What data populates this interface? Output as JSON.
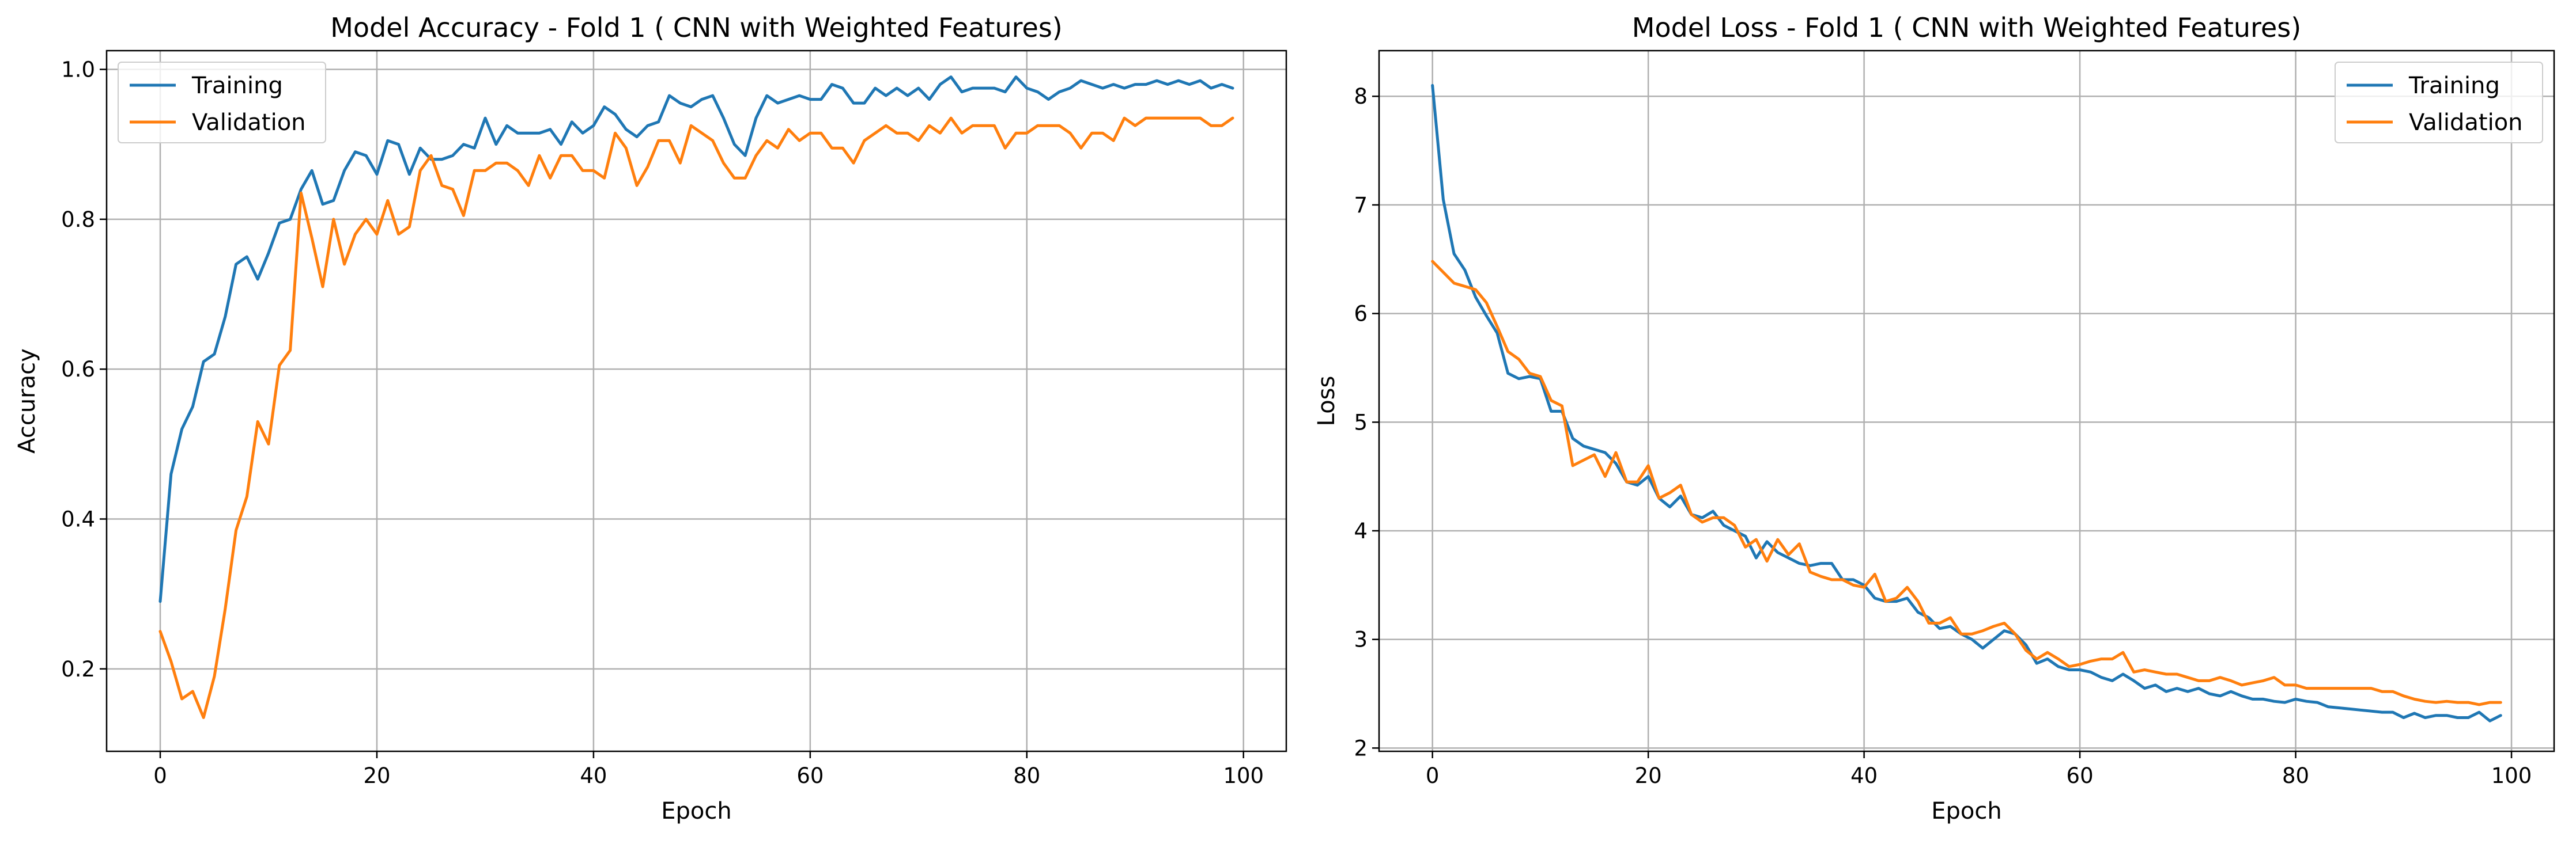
{
  "chart_data": [
    {
      "type": "line",
      "title": "Model Accuracy - Fold 1 ( CNN with Weighted Features)",
      "xlabel": "Epoch",
      "ylabel": "Accuracy",
      "xlim": [
        -4.95,
        103.95
      ],
      "ylim": [
        0.09,
        1.025
      ],
      "xticks": [
        0,
        20,
        40,
        60,
        80,
        100
      ],
      "xtick_labels": [
        "0",
        "20",
        "40",
        "60",
        "80",
        "100"
      ],
      "yticks": [
        0.2,
        0.4,
        0.6,
        0.8,
        1.0
      ],
      "ytick_labels": [
        "0.2",
        "0.4",
        "0.6",
        "0.8",
        "1.0"
      ],
      "grid": true,
      "legend_position": "top-left",
      "series": [
        {
          "name": "Training",
          "color": "#1f77b4",
          "values": [
            0.29,
            0.46,
            0.52,
            0.55,
            0.61,
            0.62,
            0.67,
            0.74,
            0.75,
            0.72,
            0.755,
            0.795,
            0.8,
            0.84,
            0.865,
            0.82,
            0.825,
            0.865,
            0.89,
            0.885,
            0.86,
            0.905,
            0.9,
            0.86,
            0.895,
            0.88,
            0.88,
            0.885,
            0.9,
            0.895,
            0.935,
            0.9,
            0.925,
            0.915,
            0.915,
            0.915,
            0.92,
            0.9,
            0.93,
            0.915,
            0.925,
            0.95,
            0.94,
            0.92,
            0.91,
            0.925,
            0.93,
            0.965,
            0.955,
            0.95,
            0.96,
            0.965,
            0.935,
            0.9,
            0.885,
            0.935,
            0.965,
            0.955,
            0.96,
            0.965,
            0.96,
            0.96,
            0.98,
            0.975,
            0.955,
            0.955,
            0.975,
            0.965,
            0.975,
            0.965,
            0.975,
            0.96,
            0.98,
            0.99,
            0.97,
            0.975,
            0.975,
            0.975,
            0.97,
            0.99,
            0.975,
            0.97,
            0.96,
            0.97,
            0.975,
            0.985,
            0.98,
            0.975,
            0.98,
            0.975,
            0.98,
            0.98,
            0.985,
            0.98,
            0.985,
            0.98,
            0.985,
            0.975,
            0.98,
            0.975
          ]
        },
        {
          "name": "Validation",
          "color": "#ff7f0e",
          "values": [
            0.25,
            0.21,
            0.16,
            0.17,
            0.135,
            0.19,
            0.28,
            0.385,
            0.43,
            0.53,
            0.5,
            0.605,
            0.625,
            0.835,
            0.775,
            0.71,
            0.8,
            0.74,
            0.78,
            0.8,
            0.78,
            0.825,
            0.78,
            0.79,
            0.865,
            0.885,
            0.845,
            0.84,
            0.805,
            0.865,
            0.865,
            0.875,
            0.875,
            0.865,
            0.845,
            0.885,
            0.855,
            0.885,
            0.885,
            0.865,
            0.865,
            0.855,
            0.915,
            0.895,
            0.845,
            0.87,
            0.905,
            0.905,
            0.875,
            0.925,
            0.915,
            0.905,
            0.875,
            0.855,
            0.855,
            0.885,
            0.905,
            0.895,
            0.92,
            0.905,
            0.915,
            0.915,
            0.895,
            0.895,
            0.875,
            0.905,
            0.915,
            0.925,
            0.915,
            0.915,
            0.905,
            0.925,
            0.915,
            0.935,
            0.915,
            0.925,
            0.925,
            0.925,
            0.895,
            0.915,
            0.915,
            0.925,
            0.925,
            0.925,
            0.915,
            0.895,
            0.915,
            0.915,
            0.905,
            0.935,
            0.925,
            0.935,
            0.935,
            0.935,
            0.935,
            0.935,
            0.935,
            0.925,
            0.925,
            0.935
          ]
        }
      ]
    },
    {
      "type": "line",
      "title": "Model Loss - Fold 1 ( CNN with Weighted Features)",
      "xlabel": "Epoch",
      "ylabel": "Loss",
      "xlim": [
        -4.95,
        103.95
      ],
      "ylim": [
        1.97,
        8.42
      ],
      "xticks": [
        0,
        20,
        40,
        60,
        80,
        100
      ],
      "xtick_labels": [
        "0",
        "20",
        "40",
        "60",
        "80",
        "100"
      ],
      "yticks": [
        2,
        3,
        4,
        5,
        6,
        7,
        8
      ],
      "ytick_labels": [
        "2",
        "3",
        "4",
        "5",
        "6",
        "7",
        "8"
      ],
      "grid": true,
      "legend_position": "top-right",
      "series": [
        {
          "name": "Training",
          "color": "#1f77b4",
          "values": [
            8.1,
            7.05,
            6.55,
            6.4,
            6.15,
            5.98,
            5.82,
            5.45,
            5.4,
            5.42,
            5.4,
            5.1,
            5.1,
            4.85,
            4.78,
            4.75,
            4.72,
            4.62,
            4.45,
            4.42,
            4.5,
            4.3,
            4.22,
            4.32,
            4.15,
            4.12,
            4.18,
            4.05,
            4.0,
            3.95,
            3.75,
            3.9,
            3.8,
            3.75,
            3.7,
            3.68,
            3.7,
            3.7,
            3.55,
            3.55,
            3.5,
            3.38,
            3.35,
            3.35,
            3.38,
            3.25,
            3.2,
            3.1,
            3.12,
            3.05,
            3.0,
            2.92,
            3.0,
            3.08,
            3.05,
            2.95,
            2.78,
            2.82,
            2.75,
            2.72,
            2.72,
            2.7,
            2.65,
            2.62,
            2.68,
            2.62,
            2.55,
            2.58,
            2.52,
            2.55,
            2.52,
            2.55,
            2.5,
            2.48,
            2.52,
            2.48,
            2.45,
            2.45,
            2.43,
            2.42,
            2.45,
            2.43,
            2.42,
            2.38,
            2.37,
            2.36,
            2.35,
            2.34,
            2.33,
            2.33,
            2.28,
            2.32,
            2.28,
            2.3,
            2.3,
            2.28,
            2.28,
            2.33,
            2.25,
            2.3
          ]
        },
        {
          "name": "Validation",
          "color": "#ff7f0e",
          "values": [
            6.48,
            6.38,
            6.28,
            6.25,
            6.22,
            6.1,
            5.88,
            5.65,
            5.58,
            5.45,
            5.42,
            5.2,
            5.15,
            4.6,
            4.65,
            4.7,
            4.5,
            4.72,
            4.45,
            4.45,
            4.6,
            4.3,
            4.35,
            4.42,
            4.15,
            4.08,
            4.12,
            4.12,
            4.05,
            3.85,
            3.92,
            3.72,
            3.92,
            3.78,
            3.88,
            3.62,
            3.58,
            3.55,
            3.55,
            3.5,
            3.48,
            3.6,
            3.35,
            3.38,
            3.48,
            3.35,
            3.15,
            3.15,
            3.2,
            3.05,
            3.05,
            3.08,
            3.12,
            3.15,
            3.05,
            2.9,
            2.82,
            2.88,
            2.82,
            2.75,
            2.77,
            2.8,
            2.82,
            2.82,
            2.88,
            2.7,
            2.72,
            2.7,
            2.68,
            2.68,
            2.65,
            2.62,
            2.62,
            2.65,
            2.62,
            2.58,
            2.6,
            2.62,
            2.65,
            2.58,
            2.58,
            2.55,
            2.55,
            2.55,
            2.55,
            2.55,
            2.55,
            2.55,
            2.52,
            2.52,
            2.48,
            2.45,
            2.43,
            2.42,
            2.43,
            2.42,
            2.42,
            2.4,
            2.42,
            2.42
          ]
        }
      ]
    }
  ]
}
